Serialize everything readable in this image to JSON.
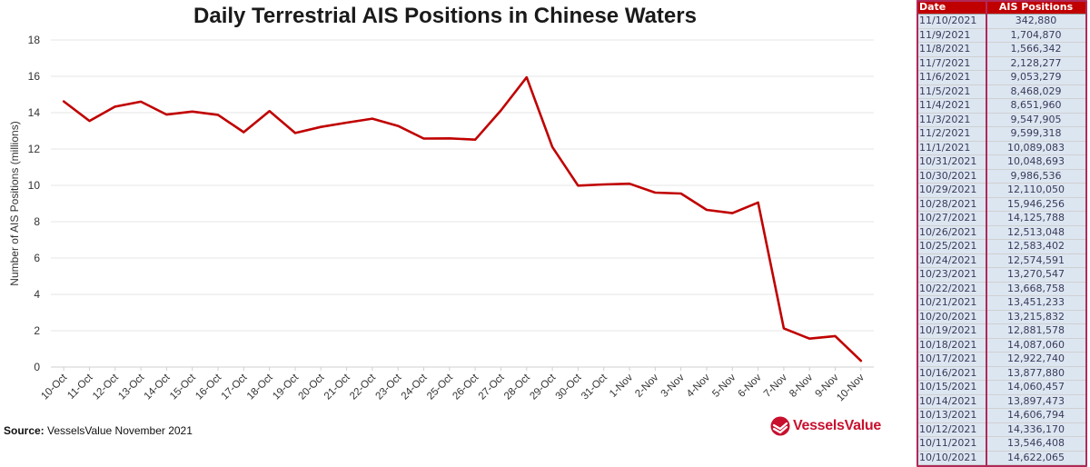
{
  "chart_data": {
    "type": "line",
    "title": "Daily Terrestrial AIS Positions in Chinese Waters",
    "ylabel": "Number of AIS Positions (millions)",
    "xlabel": "",
    "ylim": [
      0,
      18
    ],
    "yticks": [
      0,
      2,
      4,
      6,
      8,
      10,
      12,
      14,
      16,
      18
    ],
    "grid": true,
    "categories": [
      "10-Oct",
      "11-Oct",
      "12-Oct",
      "13-Oct",
      "14-Oct",
      "15-Oct",
      "16-Oct",
      "17-Oct",
      "18-Oct",
      "19-Oct",
      "20-Oct",
      "21-Oct",
      "22-Oct",
      "23-Oct",
      "24-Oct",
      "25-Oct",
      "26-Oct",
      "27-Oct",
      "28-Oct",
      "29-Oct",
      "30-Oct",
      "31-Oct",
      "1-Nov",
      "2-Nov",
      "3-Nov",
      "4-Nov",
      "5-Nov",
      "6-Nov",
      "7-Nov",
      "8-Nov",
      "9-Nov",
      "10-Nov"
    ],
    "series": [
      {
        "color": "#c00000",
        "values": [
          14.622065,
          13.546408,
          14.33617,
          14.606794,
          13.897473,
          14.060457,
          13.87788,
          12.92274,
          14.08706,
          12.881578,
          13.215832,
          13.451233,
          13.668758,
          13.270547,
          12.574591,
          12.583402,
          12.513048,
          14.125788,
          15.946256,
          12.11005,
          9.986536,
          10.048693,
          10.089083,
          9.599318,
          9.547905,
          8.65196,
          8.468029,
          9.053279,
          2.128277,
          1.566342,
          1.70487,
          0.34288
        ]
      }
    ]
  },
  "source": {
    "label": "Source:",
    "text": "VesselsValue November 2021"
  },
  "brand": {
    "name": "VesselsValue",
    "color": "#c8102e"
  },
  "table": {
    "headers": [
      "Date",
      "AIS Positions"
    ],
    "rows": [
      [
        "11/10/2021",
        "342,880"
      ],
      [
        "11/9/2021",
        "1,704,870"
      ],
      [
        "11/8/2021",
        "1,566,342"
      ],
      [
        "11/7/2021",
        "2,128,277"
      ],
      [
        "11/6/2021",
        "9,053,279"
      ],
      [
        "11/5/2021",
        "8,468,029"
      ],
      [
        "11/4/2021",
        "8,651,960"
      ],
      [
        "11/3/2021",
        "9,547,905"
      ],
      [
        "11/2/2021",
        "9,599,318"
      ],
      [
        "11/1/2021",
        "10,089,083"
      ],
      [
        "10/31/2021",
        "10,048,693"
      ],
      [
        "10/30/2021",
        "9,986,536"
      ],
      [
        "10/29/2021",
        "12,110,050"
      ],
      [
        "10/28/2021",
        "15,946,256"
      ],
      [
        "10/27/2021",
        "14,125,788"
      ],
      [
        "10/26/2021",
        "12,513,048"
      ],
      [
        "10/25/2021",
        "12,583,402"
      ],
      [
        "10/24/2021",
        "12,574,591"
      ],
      [
        "10/23/2021",
        "13,270,547"
      ],
      [
        "10/22/2021",
        "13,668,758"
      ],
      [
        "10/21/2021",
        "13,451,233"
      ],
      [
        "10/20/2021",
        "13,215,832"
      ],
      [
        "10/19/2021",
        "12,881,578"
      ],
      [
        "10/18/2021",
        "14,087,060"
      ],
      [
        "10/17/2021",
        "12,922,740"
      ],
      [
        "10/16/2021",
        "13,877,880"
      ],
      [
        "10/15/2021",
        "14,060,457"
      ],
      [
        "10/14/2021",
        "13,897,473"
      ],
      [
        "10/13/2021",
        "14,606,794"
      ],
      [
        "10/12/2021",
        "14,336,170"
      ],
      [
        "10/11/2021",
        "13,546,408"
      ],
      [
        "10/10/2021",
        "14,622,065"
      ]
    ]
  }
}
